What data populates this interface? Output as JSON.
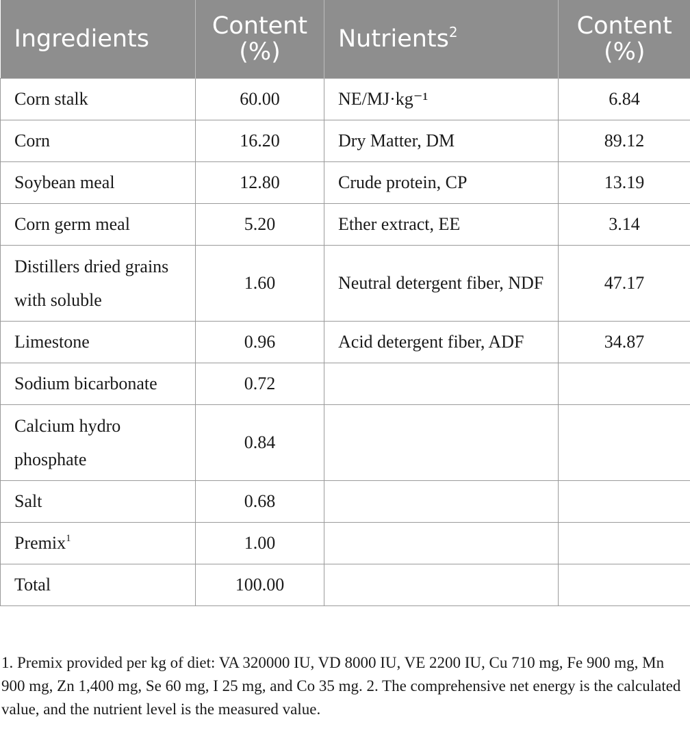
{
  "table": {
    "headers": {
      "ingredients": "Ingredients",
      "content1": "Content (%)",
      "nutrients": "Nutrients",
      "nutrients_sup": "2",
      "content2": "Content (%)"
    },
    "rows": [
      {
        "ingredient": "Corn stalk",
        "content": "60.00",
        "nutrient": "NE/MJ·kg⁻¹",
        "value": "6.84"
      },
      {
        "ingredient": "Corn",
        "content": "16.20",
        "nutrient": "Dry Matter, DM",
        "value": "89.12"
      },
      {
        "ingredient": "Soybean meal",
        "content": "12.80",
        "nutrient": "Crude protein, CP",
        "value": "13.19"
      },
      {
        "ingredient": "Corn germ meal",
        "content": "5.20",
        "nutrient": "Ether extract, EE",
        "value": "3.14"
      },
      {
        "ingredient": "Distillers dried grains with soluble",
        "content": "1.60",
        "nutrient": "Neutral detergent fiber, NDF",
        "value": "47.17"
      },
      {
        "ingredient": "Limestone",
        "content": "0.96",
        "nutrient": "Acid detergent fiber, ADF",
        "value": "34.87"
      },
      {
        "ingredient": "Sodium bicarbonate",
        "content": "0.72",
        "nutrient": "",
        "value": ""
      },
      {
        "ingredient": "Calcium hydro phosphate",
        "content": "0.84",
        "nutrient": "",
        "value": ""
      },
      {
        "ingredient": "Salt",
        "content": "0.68",
        "nutrient": "",
        "value": ""
      },
      {
        "ingredient": "Premix",
        "ingredient_sup": "1",
        "content": "1.00",
        "nutrient": "",
        "value": ""
      },
      {
        "ingredient": "Total",
        "content": "100.00",
        "nutrient": "",
        "value": ""
      }
    ]
  },
  "footnote": "1. Premix provided per kg of diet: VA 320000 IU, VD 8000 IU, VE 2200 IU, Cu 710 mg, Fe 900 mg, Mn 900 mg, Zn 1,400 mg, Se 60 mg, I 25 mg, and Co 35 mg. 2. The comprehensive net energy is the calculated value, and the nutrient level is the measured value."
}
